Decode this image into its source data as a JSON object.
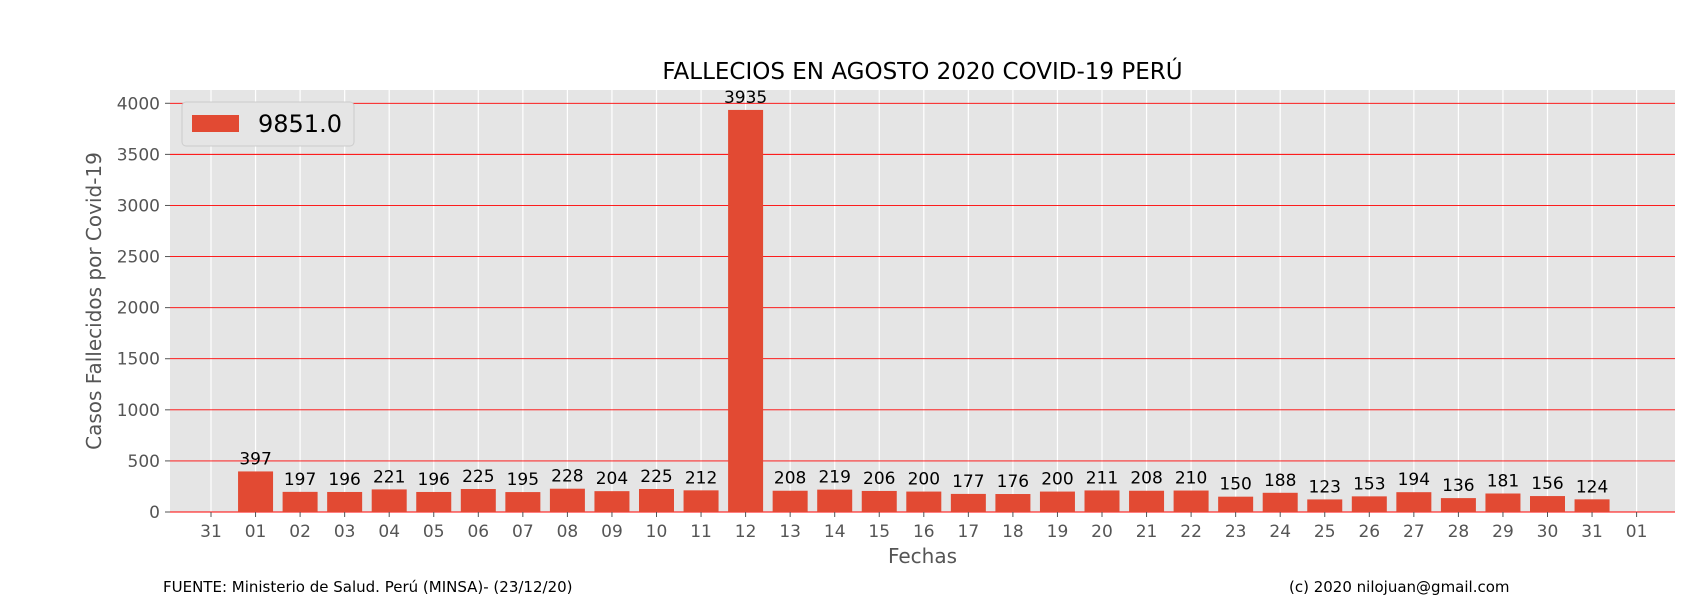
{
  "footer": {
    "source": "FUENTE: Ministerio de Salud. Perú (MINSA)- (23/12/20)",
    "credit": "(c) 2020 nilojuan@gmail.com"
  },
  "chart_data": {
    "type": "bar",
    "title": "FALLECIOS EN AGOSTO 2020 COVID-19 PERÚ",
    "xlabel": "Fechas",
    "ylabel": "Casos Fallecidos por Covid-19",
    "x_ticks": [
      "31",
      "01",
      "02",
      "03",
      "04",
      "05",
      "06",
      "07",
      "08",
      "09",
      "10",
      "11",
      "12",
      "13",
      "14",
      "15",
      "16",
      "17",
      "18",
      "19",
      "20",
      "21",
      "22",
      "23",
      "24",
      "25",
      "26",
      "27",
      "28",
      "29",
      "30",
      "31",
      "01"
    ],
    "categories": [
      "01",
      "02",
      "03",
      "04",
      "05",
      "06",
      "07",
      "08",
      "09",
      "10",
      "11",
      "12",
      "13",
      "14",
      "15",
      "16",
      "17",
      "18",
      "19",
      "20",
      "21",
      "22",
      "23",
      "24",
      "25",
      "26",
      "27",
      "28",
      "29",
      "30",
      "31"
    ],
    "series": [
      {
        "name": "9851.0",
        "color": "#e24a33",
        "values": [
          397,
          197,
          196,
          221,
          196,
          225,
          195,
          228,
          204,
          225,
          212,
          3935,
          208,
          219,
          206,
          200,
          177,
          176,
          200,
          211,
          208,
          210,
          150,
          188,
          123,
          153,
          194,
          136,
          181,
          156,
          124
        ]
      }
    ],
    "ylim": [
      0,
      4130
    ],
    "y_ticks": [
      0,
      500,
      1000,
      1500,
      2000,
      2500,
      3000,
      3500,
      4000
    ],
    "grid": true,
    "grid_color": "#ff0000",
    "background_color": "#e5e5e5",
    "legend_position": "upper-left"
  }
}
